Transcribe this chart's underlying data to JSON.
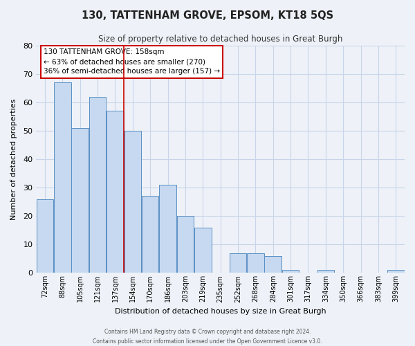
{
  "title": "130, TATTENHAM GROVE, EPSOM, KT18 5QS",
  "subtitle": "Size of property relative to detached houses in Great Burgh",
  "xlabel": "Distribution of detached houses by size in Great Burgh",
  "ylabel": "Number of detached properties",
  "categories": [
    "72sqm",
    "88sqm",
    "105sqm",
    "121sqm",
    "137sqm",
    "154sqm",
    "170sqm",
    "186sqm",
    "203sqm",
    "219sqm",
    "235sqm",
    "252sqm",
    "268sqm",
    "284sqm",
    "301sqm",
    "317sqm",
    "334sqm",
    "350sqm",
    "366sqm",
    "383sqm",
    "399sqm"
  ],
  "values": [
    26,
    67,
    51,
    62,
    57,
    50,
    27,
    31,
    20,
    16,
    0,
    7,
    7,
    6,
    1,
    0,
    1,
    0,
    0,
    0,
    1
  ],
  "bar_color": "#c6d9f0",
  "bar_edge_color": "#5a8fc3",
  "vline_color": "#cc0000",
  "vline_x": 4.5,
  "annotation_lines": [
    "130 TATTENHAM GROVE: 158sqm",
    "← 63% of detached houses are smaller (270)",
    "36% of semi-detached houses are larger (157) →"
  ],
  "ylim": [
    0,
    80
  ],
  "yticks": [
    0,
    10,
    20,
    30,
    40,
    50,
    60,
    70,
    80
  ],
  "grid_color": "#c8d4e8",
  "background_color": "#eef2f8",
  "footer_line1": "Contains HM Land Registry data © Crown copyright and database right 2024.",
  "footer_line2": "Contains public sector information licensed under the Open Government Licence v3.0."
}
